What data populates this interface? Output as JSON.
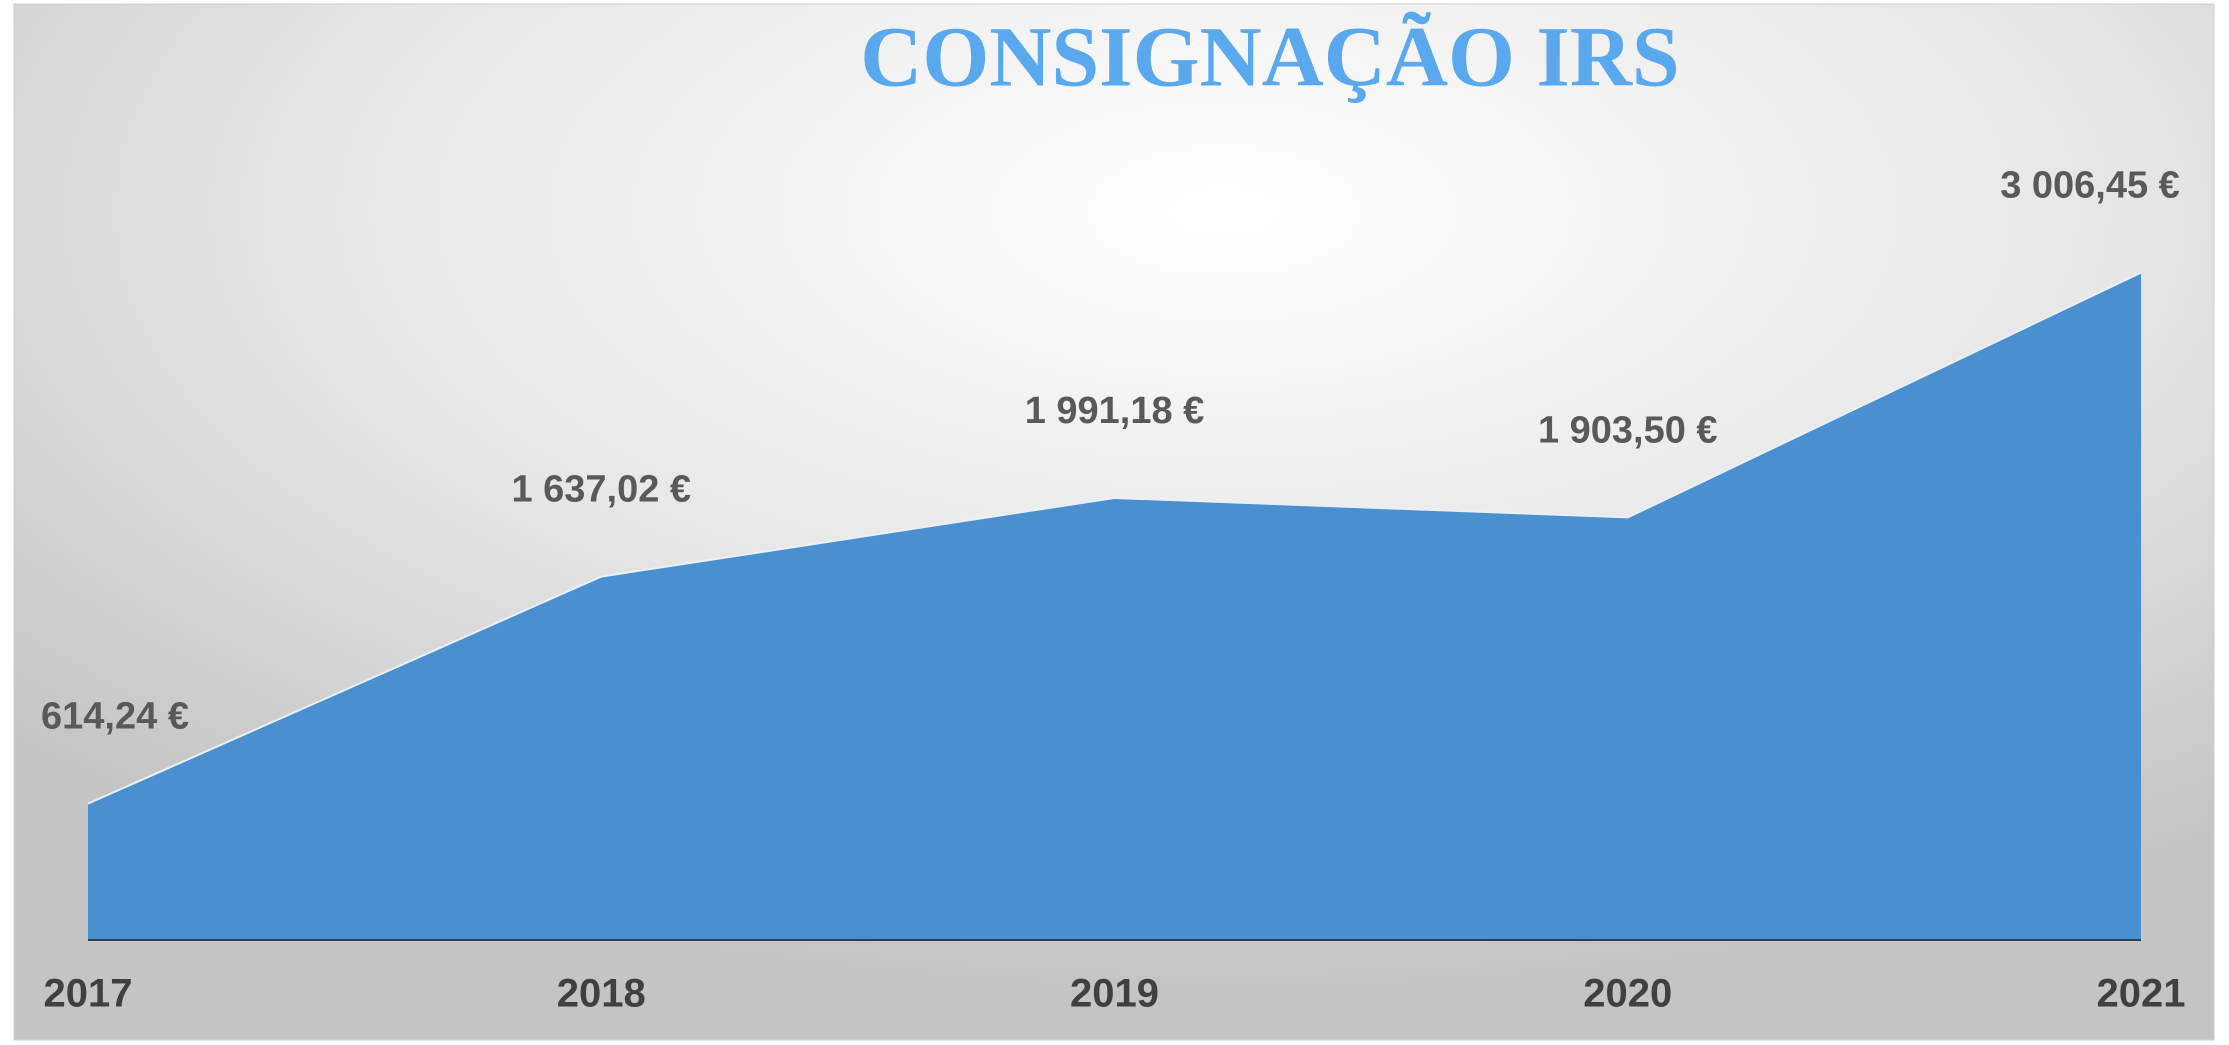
{
  "chart_data": {
    "type": "area",
    "title": "CONSIGNAÇÃO IRS",
    "categories": [
      "2017",
      "2018",
      "2019",
      "2020",
      "2021"
    ],
    "values": [
      614.24,
      1637.02,
      1991.18,
      1903.5,
      3006.45
    ],
    "value_labels": [
      "614,24 €",
      "1 637,02 €",
      "1 991,18 €",
      "1 903,50 €",
      "3 006,45 €"
    ],
    "color": "#4a8fd0",
    "ylim": [
      0,
      3500
    ]
  }
}
